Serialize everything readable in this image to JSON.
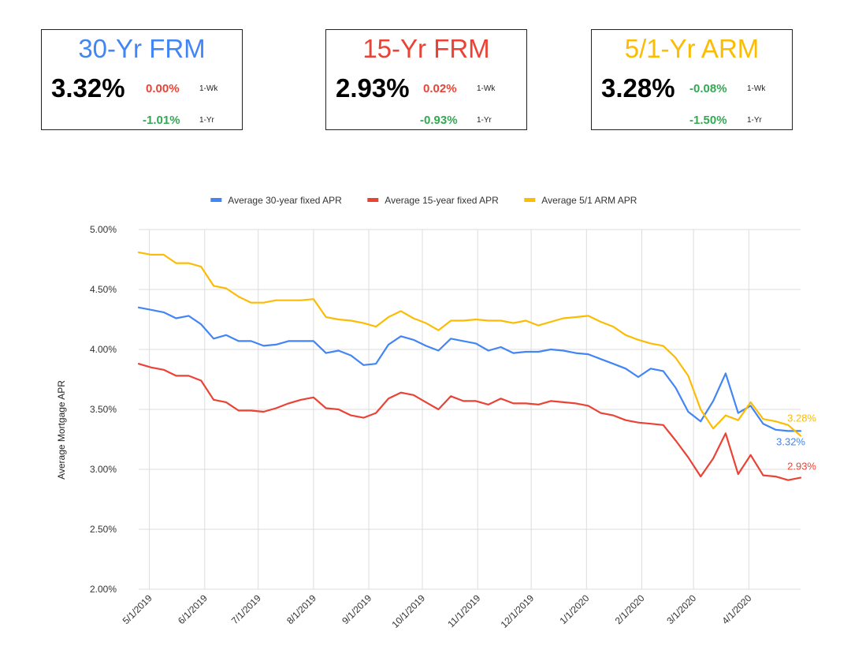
{
  "cards": [
    {
      "title": "30-Yr FRM",
      "rate": "3.32%",
      "wk": "0.00%",
      "wk_label": "1-Wk",
      "yr": "-1.01%",
      "yr_label": "1-Yr",
      "title_color": "#4285f4",
      "wk_color": "#ea4335",
      "yr_color": "#34a853"
    },
    {
      "title": "15-Yr FRM",
      "rate": "2.93%",
      "wk": "0.02%",
      "wk_label": "1-Wk",
      "yr": "-0.93%",
      "yr_label": "1-Yr",
      "title_color": "#ea4335",
      "wk_color": "#ea4335",
      "yr_color": "#34a853"
    },
    {
      "title": "5/1-Yr ARM",
      "rate": "3.28%",
      "wk": "-0.08%",
      "wk_label": "1-Wk",
      "yr": "-1.50%",
      "yr_label": "1-Yr",
      "title_color": "#fbbc04",
      "wk_color": "#34a853",
      "yr_color": "#34a853"
    }
  ],
  "chart_data": {
    "type": "line",
    "title": "",
    "xlabel": "",
    "ylabel": "Average Mortgage APR",
    "ylim": [
      2.0,
      5.0
    ],
    "y_ticks": [
      2.0,
      2.5,
      3.0,
      3.5,
      4.0,
      4.5,
      5.0
    ],
    "y_tick_labels": [
      "2.00%",
      "2.50%",
      "3.00%",
      "3.50%",
      "4.00%",
      "4.50%",
      "5.00%"
    ],
    "x_ticks": [
      "5/1/2019",
      "6/1/2019",
      "7/1/2019",
      "8/1/2019",
      "9/1/2019",
      "10/1/2019",
      "11/1/2019",
      "12/1/2019",
      "1/1/2020",
      "2/1/2020",
      "3/1/2020",
      "4/1/2020"
    ],
    "x_start": "2019-04-25",
    "x_end": "2020-04-30",
    "grid": true,
    "legend_position": "top",
    "series": [
      {
        "name": "Average 30-year fixed APR",
        "color": "#4285f4",
        "end_label": "3.32%",
        "x": [
          "2019-04-25",
          "2019-05-02",
          "2019-05-09",
          "2019-05-16",
          "2019-05-23",
          "2019-05-30",
          "2019-06-06",
          "2019-06-13",
          "2019-06-20",
          "2019-06-27",
          "2019-07-04",
          "2019-07-11",
          "2019-07-18",
          "2019-07-25",
          "2019-08-01",
          "2019-08-08",
          "2019-08-15",
          "2019-08-22",
          "2019-08-29",
          "2019-09-05",
          "2019-09-12",
          "2019-09-19",
          "2019-09-26",
          "2019-10-03",
          "2019-10-10",
          "2019-10-17",
          "2019-10-24",
          "2019-10-31",
          "2019-11-07",
          "2019-11-14",
          "2019-11-21",
          "2019-11-28",
          "2019-12-05",
          "2019-12-12",
          "2019-12-19",
          "2019-12-26",
          "2020-01-02",
          "2020-01-09",
          "2020-01-16",
          "2020-01-23",
          "2020-01-30",
          "2020-02-06",
          "2020-02-13",
          "2020-02-20",
          "2020-02-27",
          "2020-03-05",
          "2020-03-12",
          "2020-03-19",
          "2020-03-26",
          "2020-04-02",
          "2020-04-09",
          "2020-04-16",
          "2020-04-23",
          "2020-04-30"
        ],
        "y": [
          4.35,
          4.33,
          4.31,
          4.26,
          4.28,
          4.21,
          4.09,
          4.12,
          4.07,
          4.07,
          4.03,
          4.04,
          4.07,
          4.07,
          4.07,
          3.97,
          3.99,
          3.95,
          3.87,
          3.88,
          4.04,
          4.11,
          4.08,
          4.03,
          3.99,
          4.09,
          4.07,
          4.05,
          3.99,
          4.02,
          3.97,
          3.98,
          3.98,
          4.0,
          3.99,
          3.97,
          3.96,
          3.92,
          3.88,
          3.84,
          3.77,
          3.84,
          3.82,
          3.68,
          3.48,
          3.4,
          3.57,
          3.8,
          3.47,
          3.53,
          3.38,
          3.33,
          3.32,
          3.32
        ]
      },
      {
        "name": "Average 15-year fixed APR",
        "color": "#ea4335",
        "end_label": "2.93%",
        "x": [
          "2019-04-25",
          "2019-05-02",
          "2019-05-09",
          "2019-05-16",
          "2019-05-23",
          "2019-05-30",
          "2019-06-06",
          "2019-06-13",
          "2019-06-20",
          "2019-06-27",
          "2019-07-04",
          "2019-07-11",
          "2019-07-18",
          "2019-07-25",
          "2019-08-01",
          "2019-08-08",
          "2019-08-15",
          "2019-08-22",
          "2019-08-29",
          "2019-09-05",
          "2019-09-12",
          "2019-09-19",
          "2019-09-26",
          "2019-10-03",
          "2019-10-10",
          "2019-10-17",
          "2019-10-24",
          "2019-10-31",
          "2019-11-07",
          "2019-11-14",
          "2019-11-21",
          "2019-11-28",
          "2019-12-05",
          "2019-12-12",
          "2019-12-19",
          "2019-12-26",
          "2020-01-02",
          "2020-01-09",
          "2020-01-16",
          "2020-01-23",
          "2020-01-30",
          "2020-02-06",
          "2020-02-13",
          "2020-02-20",
          "2020-02-27",
          "2020-03-05",
          "2020-03-12",
          "2020-03-19",
          "2020-03-26",
          "2020-04-02",
          "2020-04-09",
          "2020-04-16",
          "2020-04-23",
          "2020-04-30"
        ],
        "y": [
          3.88,
          3.85,
          3.83,
          3.78,
          3.78,
          3.74,
          3.58,
          3.56,
          3.49,
          3.49,
          3.48,
          3.51,
          3.55,
          3.58,
          3.6,
          3.51,
          3.5,
          3.45,
          3.43,
          3.47,
          3.59,
          3.64,
          3.62,
          3.56,
          3.5,
          3.61,
          3.57,
          3.57,
          3.54,
          3.59,
          3.55,
          3.55,
          3.54,
          3.57,
          3.56,
          3.55,
          3.53,
          3.47,
          3.45,
          3.41,
          3.39,
          3.38,
          3.37,
          3.24,
          3.1,
          2.94,
          3.09,
          3.3,
          2.96,
          3.12,
          2.95,
          2.94,
          2.91,
          2.93
        ]
      },
      {
        "name": "Average 5/1 ARM APR",
        "color": "#fbbc04",
        "end_label": "3.28%",
        "x": [
          "2019-04-25",
          "2019-05-02",
          "2019-05-09",
          "2019-05-16",
          "2019-05-23",
          "2019-05-30",
          "2019-06-06",
          "2019-06-13",
          "2019-06-20",
          "2019-06-27",
          "2019-07-04",
          "2019-07-11",
          "2019-07-18",
          "2019-07-25",
          "2019-08-01",
          "2019-08-08",
          "2019-08-15",
          "2019-08-22",
          "2019-08-29",
          "2019-09-05",
          "2019-09-12",
          "2019-09-19",
          "2019-09-26",
          "2019-10-03",
          "2019-10-10",
          "2019-10-17",
          "2019-10-24",
          "2019-10-31",
          "2019-11-07",
          "2019-11-14",
          "2019-11-21",
          "2019-11-28",
          "2019-12-05",
          "2019-12-12",
          "2019-12-19",
          "2019-12-26",
          "2020-01-02",
          "2020-01-09",
          "2020-01-16",
          "2020-01-23",
          "2020-01-30",
          "2020-02-06",
          "2020-02-13",
          "2020-02-20",
          "2020-02-27",
          "2020-03-05",
          "2020-03-12",
          "2020-03-19",
          "2020-03-26",
          "2020-04-02",
          "2020-04-09",
          "2020-04-16",
          "2020-04-23",
          "2020-04-30"
        ],
        "y": [
          4.81,
          4.79,
          4.79,
          4.72,
          4.72,
          4.69,
          4.53,
          4.51,
          4.44,
          4.39,
          4.39,
          4.41,
          4.41,
          4.41,
          4.42,
          4.27,
          4.25,
          4.24,
          4.22,
          4.19,
          4.27,
          4.32,
          4.26,
          4.22,
          4.16,
          4.24,
          4.24,
          4.25,
          4.24,
          4.24,
          4.22,
          4.24,
          4.2,
          4.23,
          4.26,
          4.27,
          4.28,
          4.23,
          4.19,
          4.12,
          4.08,
          4.05,
          4.03,
          3.93,
          3.78,
          3.5,
          3.34,
          3.45,
          3.41,
          3.56,
          3.42,
          3.4,
          3.37,
          3.28
        ]
      }
    ]
  }
}
